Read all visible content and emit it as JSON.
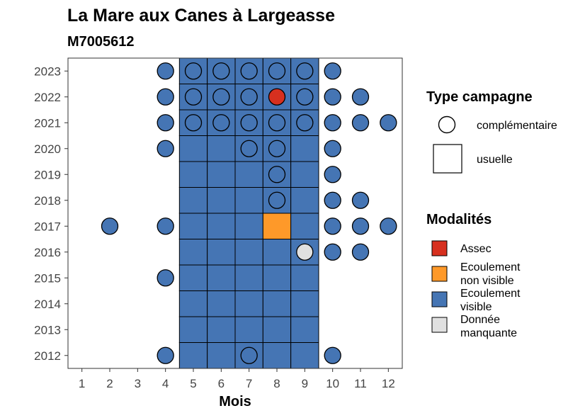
{
  "chart_data": {
    "type": "heatmap",
    "title": "La Mare aux Canes à Largeasse",
    "subtitle": "M7005612",
    "xlabel": "Mois",
    "ylabel": "",
    "x_ticks": [
      "1",
      "2",
      "3",
      "4",
      "5",
      "6",
      "7",
      "8",
      "9",
      "10",
      "11",
      "12"
    ],
    "y_ticks": [
      "2012",
      "2013",
      "2014",
      "2015",
      "2016",
      "2017",
      "2018",
      "2019",
      "2020",
      "2021",
      "2022",
      "2023"
    ],
    "xlim": [
      0.5,
      12.5
    ],
    "ylim": [
      2011.5,
      2023.5
    ],
    "grid": false,
    "colors": {
      "Assec": "#d7301f",
      "Ecoulement non visible": "#fe9929",
      "Ecoulement visible": "#4575b4",
      "Donnée manquante": "#e0e0e0"
    },
    "legend_campagne": {
      "title": "Type campagne",
      "entries": [
        {
          "key": "complementaire",
          "label": "complémentaire",
          "shape": "circle"
        },
        {
          "key": "usuelle",
          "label": "usuelle",
          "shape": "square"
        }
      ]
    },
    "legend_modalites": {
      "title": "Modalités",
      "entries": [
        {
          "key": "Assec",
          "lines": [
            "Assec"
          ]
        },
        {
          "key": "Ecoulement non visible",
          "lines": [
            "Ecoulement",
            "non visible"
          ]
        },
        {
          "key": "Ecoulement visible",
          "lines": [
            "Ecoulement",
            "visible"
          ]
        },
        {
          "key": "Donnée manquante",
          "lines": [
            "Donnée",
            "manquante"
          ]
        }
      ]
    },
    "usuelle": [
      {
        "year": 2012,
        "month": 5,
        "modalite": "Ecoulement visible"
      },
      {
        "year": 2012,
        "month": 6,
        "modalite": "Ecoulement visible"
      },
      {
        "year": 2012,
        "month": 7,
        "modalite": "Ecoulement visible"
      },
      {
        "year": 2012,
        "month": 8,
        "modalite": "Ecoulement visible"
      },
      {
        "year": 2012,
        "month": 9,
        "modalite": "Ecoulement visible"
      },
      {
        "year": 2013,
        "month": 5,
        "modalite": "Ecoulement visible"
      },
      {
        "year": 2013,
        "month": 6,
        "modalite": "Ecoulement visible"
      },
      {
        "year": 2013,
        "month": 7,
        "modalite": "Ecoulement visible"
      },
      {
        "year": 2013,
        "month": 8,
        "modalite": "Ecoulement visible"
      },
      {
        "year": 2013,
        "month": 9,
        "modalite": "Ecoulement visible"
      },
      {
        "year": 2014,
        "month": 5,
        "modalite": "Ecoulement visible"
      },
      {
        "year": 2014,
        "month": 6,
        "modalite": "Ecoulement visible"
      },
      {
        "year": 2014,
        "month": 7,
        "modalite": "Ecoulement visible"
      },
      {
        "year": 2014,
        "month": 8,
        "modalite": "Ecoulement visible"
      },
      {
        "year": 2014,
        "month": 9,
        "modalite": "Ecoulement visible"
      },
      {
        "year": 2015,
        "month": 5,
        "modalite": "Ecoulement visible"
      },
      {
        "year": 2015,
        "month": 6,
        "modalite": "Ecoulement visible"
      },
      {
        "year": 2015,
        "month": 7,
        "modalite": "Ecoulement visible"
      },
      {
        "year": 2015,
        "month": 8,
        "modalite": "Ecoulement visible"
      },
      {
        "year": 2015,
        "month": 9,
        "modalite": "Ecoulement visible"
      },
      {
        "year": 2016,
        "month": 5,
        "modalite": "Ecoulement visible"
      },
      {
        "year": 2016,
        "month": 6,
        "modalite": "Ecoulement visible"
      },
      {
        "year": 2016,
        "month": 7,
        "modalite": "Ecoulement visible"
      },
      {
        "year": 2016,
        "month": 8,
        "modalite": "Ecoulement visible"
      },
      {
        "year": 2016,
        "month": 9,
        "modalite": "Ecoulement visible"
      },
      {
        "year": 2017,
        "month": 5,
        "modalite": "Ecoulement visible"
      },
      {
        "year": 2017,
        "month": 6,
        "modalite": "Ecoulement visible"
      },
      {
        "year": 2017,
        "month": 7,
        "modalite": "Ecoulement visible"
      },
      {
        "year": 2017,
        "month": 8,
        "modalite": "Ecoulement non visible"
      },
      {
        "year": 2017,
        "month": 9,
        "modalite": "Ecoulement visible"
      },
      {
        "year": 2018,
        "month": 5,
        "modalite": "Ecoulement visible"
      },
      {
        "year": 2018,
        "month": 6,
        "modalite": "Ecoulement visible"
      },
      {
        "year": 2018,
        "month": 7,
        "modalite": "Ecoulement visible"
      },
      {
        "year": 2018,
        "month": 8,
        "modalite": "Ecoulement visible"
      },
      {
        "year": 2018,
        "month": 9,
        "modalite": "Ecoulement visible"
      },
      {
        "year": 2019,
        "month": 5,
        "modalite": "Ecoulement visible"
      },
      {
        "year": 2019,
        "month": 6,
        "modalite": "Ecoulement visible"
      },
      {
        "year": 2019,
        "month": 7,
        "modalite": "Ecoulement visible"
      },
      {
        "year": 2019,
        "month": 8,
        "modalite": "Ecoulement visible"
      },
      {
        "year": 2019,
        "month": 9,
        "modalite": "Ecoulement visible"
      },
      {
        "year": 2020,
        "month": 5,
        "modalite": "Ecoulement visible"
      },
      {
        "year": 2020,
        "month": 6,
        "modalite": "Ecoulement visible"
      },
      {
        "year": 2020,
        "month": 7,
        "modalite": "Ecoulement visible"
      },
      {
        "year": 2020,
        "month": 8,
        "modalite": "Ecoulement visible"
      },
      {
        "year": 2020,
        "month": 9,
        "modalite": "Ecoulement visible"
      },
      {
        "year": 2021,
        "month": 5,
        "modalite": "Ecoulement visible"
      },
      {
        "year": 2021,
        "month": 6,
        "modalite": "Ecoulement visible"
      },
      {
        "year": 2021,
        "month": 7,
        "modalite": "Ecoulement visible"
      },
      {
        "year": 2021,
        "month": 8,
        "modalite": "Ecoulement visible"
      },
      {
        "year": 2021,
        "month": 9,
        "modalite": "Ecoulement visible"
      },
      {
        "year": 2022,
        "month": 5,
        "modalite": "Ecoulement visible"
      },
      {
        "year": 2022,
        "month": 6,
        "modalite": "Ecoulement visible"
      },
      {
        "year": 2022,
        "month": 7,
        "modalite": "Ecoulement visible"
      },
      {
        "year": 2022,
        "month": 8,
        "modalite": "Ecoulement visible"
      },
      {
        "year": 2022,
        "month": 9,
        "modalite": "Ecoulement visible"
      },
      {
        "year": 2023,
        "month": 5,
        "modalite": "Ecoulement visible"
      },
      {
        "year": 2023,
        "month": 6,
        "modalite": "Ecoulement visible"
      },
      {
        "year": 2023,
        "month": 7,
        "modalite": "Ecoulement visible"
      },
      {
        "year": 2023,
        "month": 8,
        "modalite": "Ecoulement visible"
      },
      {
        "year": 2023,
        "month": 9,
        "modalite": "Ecoulement visible"
      }
    ],
    "complementaire": [
      {
        "year": 2023,
        "month": 4,
        "modalite": "Ecoulement visible"
      },
      {
        "year": 2023,
        "month": 5,
        "modalite": "Ecoulement visible"
      },
      {
        "year": 2023,
        "month": 6,
        "modalite": "Ecoulement visible"
      },
      {
        "year": 2023,
        "month": 7,
        "modalite": "Ecoulement visible"
      },
      {
        "year": 2023,
        "month": 8,
        "modalite": "Ecoulement visible"
      },
      {
        "year": 2023,
        "month": 9,
        "modalite": "Ecoulement visible"
      },
      {
        "year": 2023,
        "month": 10,
        "modalite": "Ecoulement visible"
      },
      {
        "year": 2022,
        "month": 4,
        "modalite": "Ecoulement visible"
      },
      {
        "year": 2022,
        "month": 5,
        "modalite": "Ecoulement visible"
      },
      {
        "year": 2022,
        "month": 6,
        "modalite": "Ecoulement visible"
      },
      {
        "year": 2022,
        "month": 7,
        "modalite": "Ecoulement visible"
      },
      {
        "year": 2022,
        "month": 8,
        "modalite": "Assec"
      },
      {
        "year": 2022,
        "month": 9,
        "modalite": "Ecoulement visible"
      },
      {
        "year": 2022,
        "month": 10,
        "modalite": "Ecoulement visible"
      },
      {
        "year": 2022,
        "month": 11,
        "modalite": "Ecoulement visible"
      },
      {
        "year": 2021,
        "month": 4,
        "modalite": "Ecoulement visible"
      },
      {
        "year": 2021,
        "month": 5,
        "modalite": "Ecoulement visible"
      },
      {
        "year": 2021,
        "month": 6,
        "modalite": "Ecoulement visible"
      },
      {
        "year": 2021,
        "month": 7,
        "modalite": "Ecoulement visible"
      },
      {
        "year": 2021,
        "month": 8,
        "modalite": "Ecoulement visible"
      },
      {
        "year": 2021,
        "month": 9,
        "modalite": "Ecoulement visible"
      },
      {
        "year": 2021,
        "month": 10,
        "modalite": "Ecoulement visible"
      },
      {
        "year": 2021,
        "month": 11,
        "modalite": "Ecoulement visible"
      },
      {
        "year": 2021,
        "month": 12,
        "modalite": "Ecoulement visible"
      },
      {
        "year": 2020,
        "month": 4,
        "modalite": "Ecoulement visible"
      },
      {
        "year": 2020,
        "month": 7,
        "modalite": "Ecoulement visible"
      },
      {
        "year": 2020,
        "month": 8,
        "modalite": "Ecoulement visible"
      },
      {
        "year": 2020,
        "month": 10,
        "modalite": "Ecoulement visible"
      },
      {
        "year": 2019,
        "month": 8,
        "modalite": "Ecoulement visible"
      },
      {
        "year": 2019,
        "month": 10,
        "modalite": "Ecoulement visible"
      },
      {
        "year": 2018,
        "month": 8,
        "modalite": "Ecoulement visible"
      },
      {
        "year": 2018,
        "month": 10,
        "modalite": "Ecoulement visible"
      },
      {
        "year": 2018,
        "month": 11,
        "modalite": "Ecoulement visible"
      },
      {
        "year": 2017,
        "month": 2,
        "modalite": "Ecoulement visible"
      },
      {
        "year": 2017,
        "month": 4,
        "modalite": "Ecoulement visible"
      },
      {
        "year": 2017,
        "month": 10,
        "modalite": "Ecoulement visible"
      },
      {
        "year": 2017,
        "month": 11,
        "modalite": "Ecoulement visible"
      },
      {
        "year": 2017,
        "month": 12,
        "modalite": "Ecoulement visible"
      },
      {
        "year": 2016,
        "month": 9,
        "modalite": "Donnée manquante"
      },
      {
        "year": 2016,
        "month": 10,
        "modalite": "Ecoulement visible"
      },
      {
        "year": 2016,
        "month": 11,
        "modalite": "Ecoulement visible"
      },
      {
        "year": 2015,
        "month": 4,
        "modalite": "Ecoulement visible"
      },
      {
        "year": 2012,
        "month": 4,
        "modalite": "Ecoulement visible"
      },
      {
        "year": 2012,
        "month": 7,
        "modalite": "Ecoulement visible"
      },
      {
        "year": 2012,
        "month": 10,
        "modalite": "Ecoulement visible"
      }
    ]
  }
}
